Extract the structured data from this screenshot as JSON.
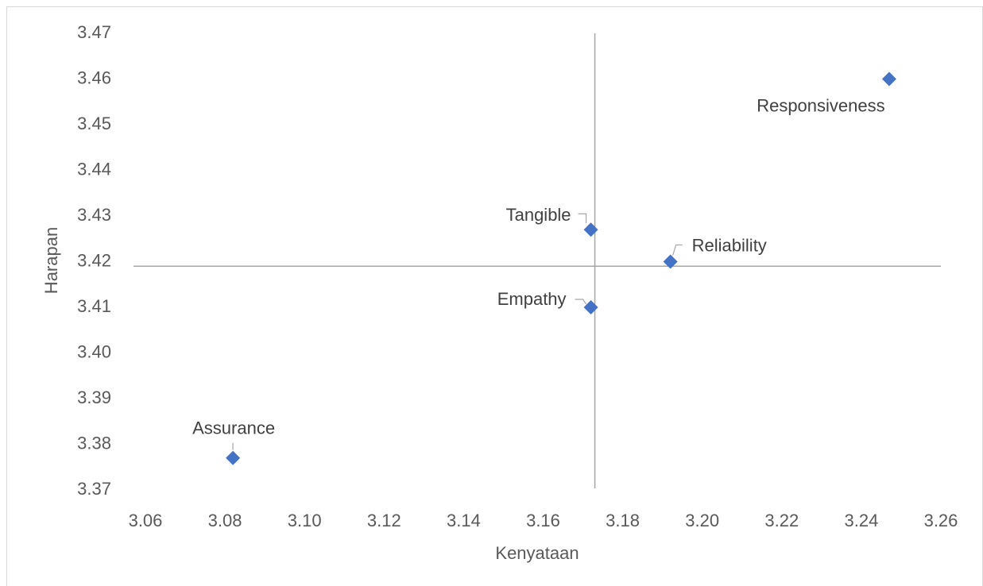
{
  "chart_data": {
    "type": "scatter",
    "x_label": "Kenyataan",
    "y_label": "Harapan",
    "point_labels": [
      "Responsiveness",
      "Tangible",
      "Reliability",
      "Empathy",
      "Assurance"
    ],
    "x": [
      3.247,
      3.172,
      3.192,
      3.172,
      3.082
    ],
    "values": [
      3.46,
      3.427,
      3.42,
      3.41,
      3.377
    ],
    "color": "#4472c4",
    "vline_x": 3.173,
    "hline_y": 3.419,
    "xlim": [
      3.06,
      3.26
    ],
    "xticks": [
      3.06,
      3.08,
      {
        "value": 3.1,
        "label": "3.10"
      },
      3.12,
      3.14,
      3.16,
      3.18,
      {
        "value": 3.2,
        "label": "3.20"
      },
      3.22,
      3.24,
      3.26
    ],
    "ylim": [
      3.37,
      3.47
    ],
    "yticks": [
      3.37,
      3.38,
      3.39,
      {
        "value": 3.4,
        "label": "3.40"
      },
      3.41,
      3.42,
      3.43,
      3.44,
      3.45,
      3.46,
      3.47
    ]
  }
}
